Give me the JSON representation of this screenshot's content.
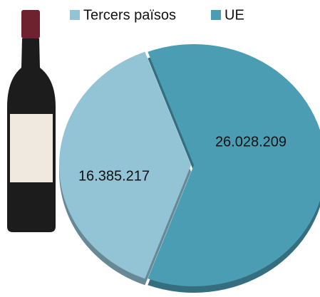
{
  "chart_data": {
    "type": "pie",
    "categories": [
      "Tercers països",
      "UE"
    ],
    "values": [
      16385217,
      26028209
    ],
    "value_labels": [
      "16.385.217",
      "26.028.209"
    ],
    "colors": [
      "#93c4d6",
      "#4b9db4"
    ],
    "legend": "top"
  }
}
